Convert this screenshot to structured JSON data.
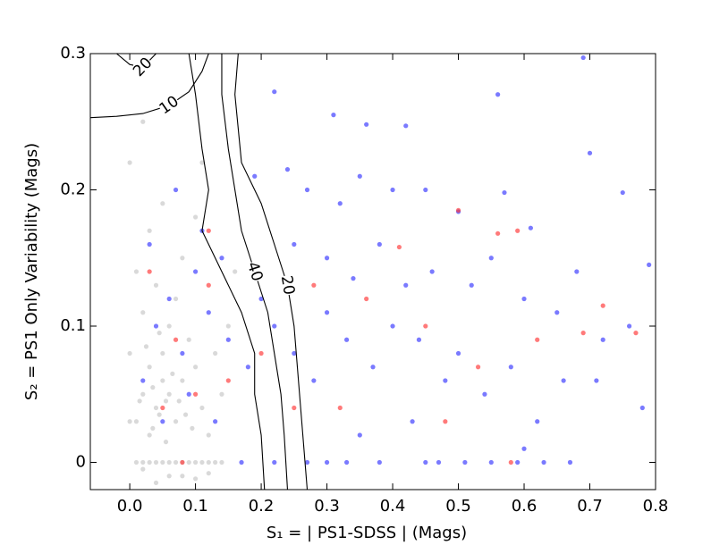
{
  "chart_data": {
    "type": "scatter",
    "xlabel": "S₁ = | PS1-SDSS | (Mags)",
    "ylabel": "S₂ = PS1 Only Variability (Mags)",
    "xlim": [
      -0.06,
      0.8
    ],
    "ylim": [
      -0.02,
      0.3
    ],
    "xticks": [
      {
        "value": 0,
        "label": "0.0"
      },
      0.1,
      0.2,
      0.3,
      0.4,
      0.5,
      0.6,
      0.7,
      0.8
    ],
    "yticks": [
      0,
      0.1,
      0.2,
      0.3
    ],
    "series": [
      {
        "color": "#000000",
        "opacity": 0.15,
        "x": [
          0.02,
          0.03,
          0.04,
          0.05,
          0.06,
          0.07,
          0.08,
          0.03,
          0.05,
          0.06,
          0.02,
          0.04,
          0.07,
          0.09,
          0.1,
          0.11,
          0.12,
          0.01,
          0.0,
          0.01,
          0.03,
          0.05,
          0.08,
          0.1,
          0.13,
          0.14,
          0.15,
          0.06,
          0.04,
          0.08,
          0.02,
          0.1,
          0.12,
          0.0,
          0.01,
          0.02,
          0.03,
          0.04,
          0.05,
          0.06,
          0.07,
          0.08,
          0.09,
          0.1,
          0.11,
          0.12,
          0.13,
          0.14,
          0.015,
          0.035,
          0.045,
          0.055,
          0.065,
          0.075,
          0.025,
          0.045,
          0.085,
          0.095,
          0.035,
          0.055,
          0.0,
          0.02,
          0.16,
          0.11
        ],
        "y": [
          0.05,
          0.07,
          0.04,
          0.06,
          0.05,
          0.03,
          0.06,
          0.02,
          0.08,
          0.1,
          0.11,
          0.13,
          0.12,
          0.09,
          0.07,
          0.04,
          0.02,
          0.03,
          0.08,
          0.14,
          0.17,
          0.19,
          0.15,
          0.18,
          0.08,
          0.05,
          0.1,
          -0.01,
          -0.015,
          -0.01,
          -0.005,
          -0.012,
          -0.008,
          0.03,
          0,
          0,
          0,
          0,
          0,
          0,
          0,
          0,
          0,
          0,
          0,
          0,
          0,
          0,
          0.045,
          0.055,
          0.035,
          0.045,
          0.065,
          0.045,
          0.085,
          0.095,
          0.035,
          0.025,
          0.025,
          0.015,
          0.22,
          0.25,
          0.14,
          0.22
        ]
      },
      {
        "color": "#3333ff",
        "opacity": 0.65,
        "x": [
          0.31,
          0.36,
          0.42,
          0.56,
          0.69,
          0.7,
          0.75,
          0.79,
          0.61,
          0.57,
          0.5,
          0.45,
          0.4,
          0.35,
          0.32,
          0.27,
          0.22,
          0.24,
          0.19,
          0.25,
          0.3,
          0.34,
          0.38,
          0.42,
          0.46,
          0.52,
          0.55,
          0.6,
          0.65,
          0.68,
          0.72,
          0.76,
          0.78,
          0.71,
          0.66,
          0.62,
          0.58,
          0.54,
          0.5,
          0.48,
          0.44,
          0.4,
          0.37,
          0.33,
          0.3,
          0.28,
          0.25,
          0.22,
          0.2,
          0.18,
          0.15,
          0.12,
          0.1,
          0.08,
          0.06,
          0.04,
          0.02,
          0.05,
          0.09,
          0.13,
          0.35,
          0.43,
          0.6,
          0.22,
          0.27,
          0.3,
          0.33,
          0.38,
          0.45,
          0.47,
          0.51,
          0.55,
          0.59,
          0.63,
          0.67,
          0.17,
          0.03,
          0.07,
          0.11,
          0.14
        ],
        "y": [
          0.255,
          0.248,
          0.247,
          0.27,
          0.297,
          0.227,
          0.198,
          0.145,
          0.172,
          0.198,
          0.184,
          0.2,
          0.2,
          0.21,
          0.19,
          0.2,
          0.272,
          0.215,
          0.21,
          0.16,
          0.15,
          0.135,
          0.16,
          0.13,
          0.14,
          0.13,
          0.15,
          0.12,
          0.11,
          0.14,
          0.09,
          0.1,
          0.04,
          0.06,
          0.06,
          0.03,
          0.07,
          0.05,
          0.08,
          0.06,
          0.09,
          0.1,
          0.07,
          0.09,
          0.11,
          0.06,
          0.08,
          0.1,
          0.12,
          0.07,
          0.09,
          0.11,
          0.14,
          0.08,
          0.12,
          0.1,
          0.06,
          0.03,
          0.05,
          0.03,
          0.02,
          0.03,
          0.01,
          0,
          0,
          0,
          0,
          0,
          0,
          0,
          0,
          0,
          0,
          0,
          0,
          0,
          0.16,
          0.2,
          0.17,
          0.15
        ]
      },
      {
        "color": "#ff3333",
        "opacity": 0.65,
        "x": [
          0.41,
          0.5,
          0.56,
          0.59,
          0.45,
          0.36,
          0.28,
          0.2,
          0.15,
          0.1,
          0.05,
          0.07,
          0.03,
          0.12,
          0.48,
          0.53,
          0.58,
          0.62,
          0.72,
          0.77,
          0.69,
          0.32,
          0.25,
          0.08,
          0.12
        ],
        "y": [
          0.158,
          0.185,
          0.168,
          0.17,
          0.1,
          0.12,
          0.13,
          0.08,
          0.06,
          0.05,
          0.04,
          0.09,
          0.14,
          0.17,
          0.03,
          0.07,
          0,
          0.09,
          0.115,
          0.095,
          0.095,
          0.04,
          0.04,
          0,
          0.13
        ]
      }
    ],
    "contours": [
      {
        "label": "10",
        "x": [
          -0.06,
          -0.02,
          0.02,
          0.06,
          0.09,
          0.11,
          0.12
        ],
        "y": [
          0.253,
          0.254,
          0.256,
          0.262,
          0.272,
          0.287,
          0.3
        ]
      },
      {
        "label": "20",
        "x": [
          -0.02,
          0.0,
          0.02,
          0.04
        ],
        "y": [
          0.3,
          0.292,
          0.29,
          0.3
        ]
      },
      {
        "x": [
          0.09,
          0.1,
          0.11,
          0.12,
          0.11,
          0.13,
          0.17,
          0.19,
          0.19,
          0.2,
          0.205
        ],
        "y": [
          0.3,
          0.27,
          0.23,
          0.2,
          0.17,
          0.15,
          0.11,
          0.08,
          0.05,
          0.02,
          -0.02
        ]
      },
      {
        "label": "40",
        "x": [
          0.14,
          0.14,
          0.15,
          0.16,
          0.17,
          0.19,
          0.21,
          0.22,
          0.23,
          0.235,
          0.24
        ],
        "y": [
          0.3,
          0.27,
          0.23,
          0.2,
          0.17,
          0.14,
          0.11,
          0.08,
          0.05,
          0.02,
          -0.02
        ]
      },
      {
        "label": "20",
        "x": [
          0.165,
          0.16,
          0.17,
          0.2,
          0.22,
          0.24,
          0.25,
          0.255,
          0.26,
          0.265,
          0.27
        ],
        "y": [
          0.3,
          0.27,
          0.22,
          0.19,
          0.16,
          0.13,
          0.1,
          0.07,
          0.04,
          0.01,
          -0.02
        ]
      }
    ]
  }
}
